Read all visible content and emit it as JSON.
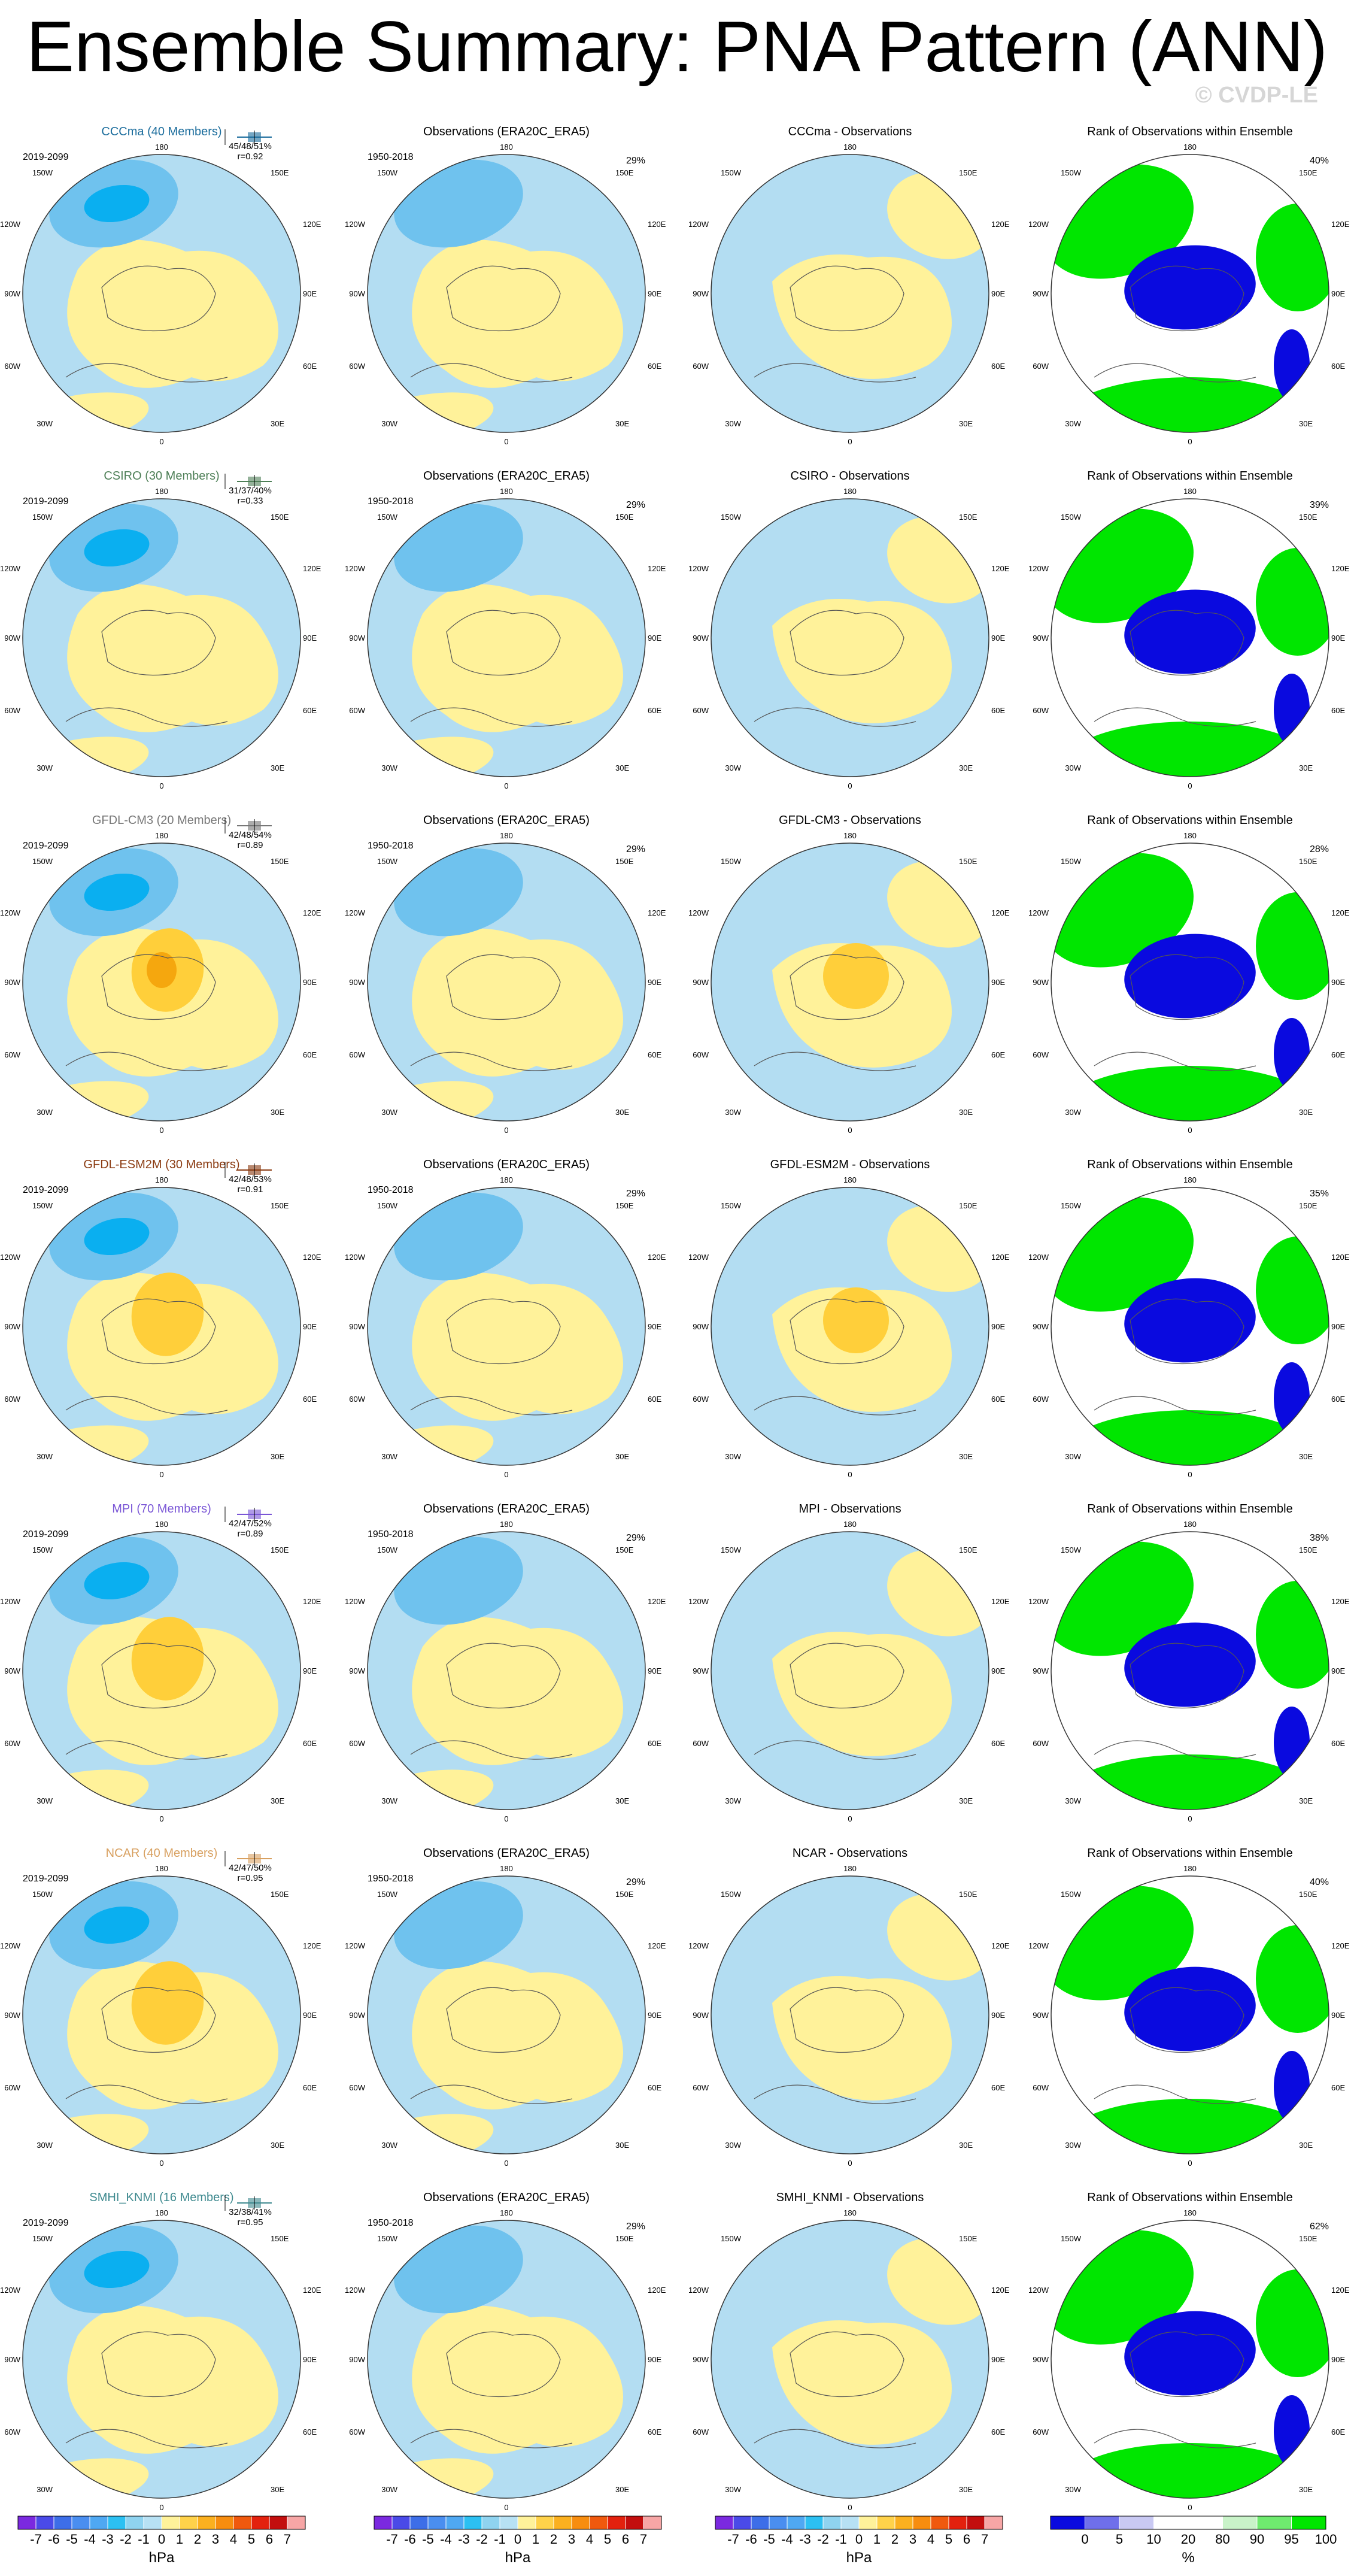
{
  "title": "Ensemble Summary: PNA Pattern (ANN)",
  "watermark": "© CVDP-LE",
  "model_period": "2019-2099",
  "obs_period": "1950-2018",
  "obs_title": "Observations (ERA20C_ERA5)",
  "rank_title": "Rank of Observations within Ensemble",
  "obs_pct": "29%",
  "colors": {
    "ocean_blue": "#b3ddf2",
    "mid_blue": "#6fc2ee",
    "deep_blue": "#0aaff0",
    "yellow": "#fff29a",
    "orange": "#ffcf3a",
    "dark_orange": "#f5a70e",
    "rank_green": "#00e600",
    "rank_blue": "#0a0adf"
  },
  "rows": [
    {
      "model": "CCCma (40 Members)",
      "model_color": "#1a6c9c",
      "stats": "45/48/51%",
      "r": "r=0.92",
      "diff_title": "CCCma - Observations",
      "rank_pct": "40%"
    },
    {
      "model": "CSIRO (30 Members)",
      "model_color": "#4e7f57",
      "stats": "31/37/40%",
      "r": "r=0.33",
      "diff_title": "CSIRO - Observations",
      "rank_pct": "39%"
    },
    {
      "model": "GFDL-CM3 (20 Members)",
      "model_color": "#777777",
      "stats": "42/48/54%",
      "r": "r=0.89",
      "diff_title": "GFDL-CM3 - Observations",
      "rank_pct": "28%"
    },
    {
      "model": "GFDL-ESM2M (30 Members)",
      "model_color": "#8a3a10",
      "stats": "42/48/53%",
      "r": "r=0.91",
      "diff_title": "GFDL-ESM2M - Observations",
      "rank_pct": "35%"
    },
    {
      "model": "MPI (70 Members)",
      "model_color": "#7a56d6",
      "stats": "42/47/52%",
      "r": "r=0.89",
      "diff_title": "MPI - Observations",
      "rank_pct": "38%"
    },
    {
      "model": "NCAR (40 Members)",
      "model_color": "#d8a060",
      "stats": "42/47/50%",
      "r": "r=0.95",
      "diff_title": "NCAR - Observations",
      "rank_pct": "40%"
    },
    {
      "model": "SMHI_KNMI (16 Members)",
      "model_color": "#3f8a8f",
      "stats": "32/38/41%",
      "r": "r=0.95",
      "diff_title": "SMHI_KNMI - Observations",
      "rank_pct": "62%"
    }
  ],
  "lon_labels": {
    "top": "180",
    "bottom": "0",
    "l1": "150W",
    "l2": "120W",
    "l3": "90W",
    "l4": "60W",
    "l5": "30W",
    "r1": "150E",
    "r2": "120E",
    "r3": "90E",
    "r4": "60E",
    "r5": "30E"
  },
  "colorbar_hpa": {
    "ticks": [
      "-7",
      "-6",
      "-5",
      "-4",
      "-3",
      "-2",
      "-1",
      "0",
      "1",
      "2",
      "3",
      "4",
      "5",
      "6",
      "7"
    ],
    "unit": "hPa",
    "colors": [
      "#7b29e0",
      "#4a4ae8",
      "#3d6ee8",
      "#4a8ef0",
      "#4fa8f2",
      "#2cc0f2",
      "#8fd3f0",
      "#b7e1f4",
      "#fff29a",
      "#ffd24a",
      "#fbb01f",
      "#f78d0f",
      "#f0590e",
      "#e3210e",
      "#c30e0e",
      "#f7a6a6"
    ]
  },
  "colorbar_rank": {
    "ticks": [
      "0",
      "5",
      "10",
      "20",
      "80",
      "90",
      "95",
      "100"
    ],
    "unit": "%",
    "colors": [
      "#0a0adf",
      "#6f6fea",
      "#c9c9f3",
      "#ffffff",
      "#ffffff",
      "#c9f3c9",
      "#6fea6f",
      "#00e600"
    ]
  }
}
